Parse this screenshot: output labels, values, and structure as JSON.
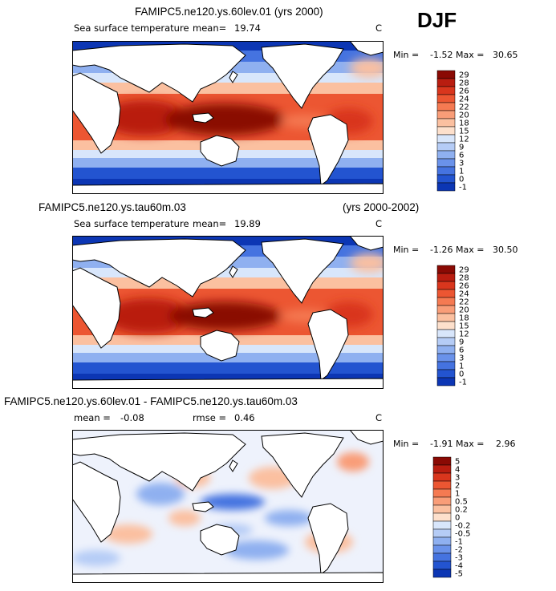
{
  "season": "DJF",
  "colors": {
    "warm": [
      "#fde0cc",
      "#fbc0a0",
      "#f99d78",
      "#f57a52",
      "#ec5632",
      "#d9361d",
      "#b91d10",
      "#8a0a04"
    ],
    "cold": [
      "#d8e6fb",
      "#b5ccf6",
      "#8fb0f0",
      "#6a92ea",
      "#4573e0",
      "#2354d0",
      "#0c36b4",
      "#061e8a"
    ],
    "land": "#ffffff",
    "coast": "#000000"
  },
  "chart_data": [
    {
      "type": "heatmap",
      "title": "FAMIPC5.ne120.ys.60lev.01 (yrs 2000)",
      "variable": "Sea surface temperature",
      "mean_label": "mean=",
      "mean": "19.74",
      "units": "C",
      "min_label": "Min =",
      "min": "-1.52",
      "max_label": "Max =",
      "max": "30.65",
      "colorbar_levels": [
        "29",
        "28",
        "26",
        "24",
        "22",
        "20",
        "18",
        "15",
        "12",
        "9",
        "6",
        "3",
        "1",
        "0",
        "-1"
      ]
    },
    {
      "type": "heatmap",
      "title": "FAMIPC5.ne120.ys.tau60m.03",
      "title_right": "(yrs 2000-2002)",
      "variable": "Sea surface temperature",
      "mean_label": "mean=",
      "mean": "19.89",
      "units": "C",
      "min_label": "Min =",
      "min": "-1.26",
      "max_label": "Max =",
      "max": "30.50",
      "colorbar_levels": [
        "29",
        "28",
        "26",
        "24",
        "22",
        "20",
        "18",
        "15",
        "12",
        "9",
        "6",
        "3",
        "1",
        "0",
        "-1"
      ]
    },
    {
      "type": "heatmap",
      "title": "FAMIPC5.ne120.ys.60lev.01 - FAMIPC5.ne120.ys.tau60m.03",
      "mean_label": "mean =",
      "mean": "-0.08",
      "rmse_label": "rmse =",
      "rmse": "0.46",
      "units": "C",
      "min_label": "Min =",
      "min": "-1.91",
      "max_label": "Max =",
      "max": "2.96",
      "colorbar_levels": [
        "5",
        "4",
        "3",
        "2",
        "1",
        "0.5",
        "0.2",
        "0",
        "-0.2",
        "-0.5",
        "-1",
        "-2",
        "-3",
        "-4",
        "-5"
      ]
    }
  ]
}
